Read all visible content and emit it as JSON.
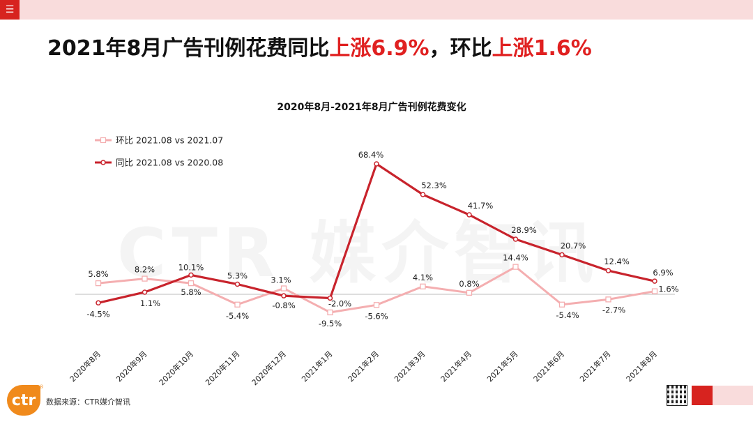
{
  "header": {
    "menu_icon": "menu-icon",
    "headline_prefix": "2021年8月广告刊例花费同比",
    "headline_yoy": "上涨6.9%",
    "headline_mid": "，环比",
    "headline_mom": "上涨1.6%"
  },
  "watermark": "CTR 媒介智讯",
  "footer": {
    "source": "数据来源：CTR媒介智讯",
    "logo_text": "ctr",
    "logo_reg": "®"
  },
  "colors": {
    "accent": "#d7231f",
    "mom_line": "#f4aeb0",
    "yoy_line": "#c8232c",
    "highlight": "#e02020"
  },
  "chart_data": {
    "type": "line",
    "title": "2020年8月-2021年8月广告刊例花费变化",
    "categories": [
      "2020年8月",
      "2020年9月",
      "2020年10月",
      "2020年11月",
      "2020年12月",
      "2021年1月",
      "2021年2月",
      "2021年3月",
      "2021年4月",
      "2021年5月",
      "2021年6月",
      "2021年7月",
      "2021年8月"
    ],
    "series": [
      {
        "name": "环比 2021.08 vs 2021.07",
        "values": [
          5.8,
          8.2,
          5.8,
          -5.4,
          3.1,
          -9.5,
          -5.6,
          4.1,
          0.8,
          14.4,
          -5.4,
          -2.7,
          1.6
        ],
        "labels": [
          "5.8%",
          "8.2%",
          "5.8%",
          "-5.4%",
          "3.1%",
          "-9.5%",
          "-5.6%",
          "4.1%",
          "0.8%",
          "14.4%",
          "-5.4%",
          "-2.7%",
          "1.6%"
        ]
      },
      {
        "name": "同比 2021.08 vs 2020.08",
        "values": [
          -4.5,
          1.1,
          10.1,
          5.3,
          -0.8,
          -2.0,
          68.4,
          52.3,
          41.7,
          28.9,
          20.7,
          12.4,
          6.9
        ],
        "labels": [
          "-4.5%",
          "1.1%",
          "10.1%",
          "5.3%",
          "-0.8%",
          "-2.0%",
          "68.4%",
          "52.3%",
          "41.7%",
          "28.9%",
          "20.7%",
          "12.4%",
          "6.9%"
        ]
      }
    ],
    "ylim": [
      -15,
      75
    ],
    "grid": false,
    "legend": "top-left",
    "xlabel": "",
    "ylabel": ""
  }
}
